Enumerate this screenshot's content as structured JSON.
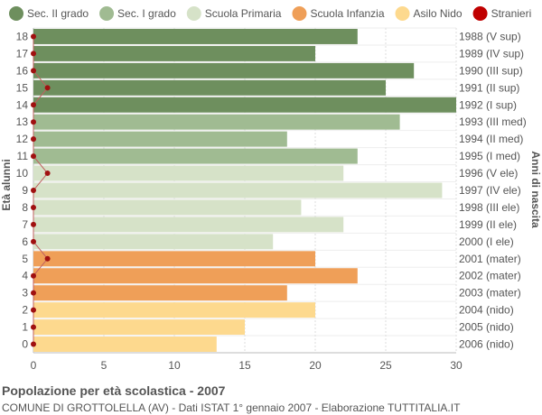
{
  "chart_data": {
    "type": "bar",
    "orientation": "horizontal",
    "title": "Popolazione per età scolastica - 2007",
    "subtitle": "COMUNE DI GROTTOLELLA (AV) - Dati ISTAT 1° gennaio 2007 - Elaborazione TUTTITALIA.IT",
    "ylabel": "Età alunni",
    "ylabel_right": "Anni di nascita",
    "xlim": [
      0,
      30
    ],
    "xticks": [
      "0",
      "5",
      "10",
      "15",
      "20",
      "25",
      "30"
    ],
    "grid": true,
    "legend_position": "top",
    "legend": [
      {
        "name": "Sec. II grado",
        "color": "#6e8f5e"
      },
      {
        "name": "Sec. I grado",
        "color": "#a0bb92"
      },
      {
        "name": "Scuola Primaria",
        "color": "#d6e2c8"
      },
      {
        "name": "Scuola Infanzia",
        "color": "#ef9f58"
      },
      {
        "name": "Asilo Nido",
        "color": "#fdd98e"
      },
      {
        "name": "Stranieri",
        "color": "#c00000"
      }
    ],
    "rows": [
      {
        "age": "18",
        "birth": "1988 (V sup)",
        "value": 23,
        "stranieri": 0,
        "group": 0
      },
      {
        "age": "17",
        "birth": "1989 (IV sup)",
        "value": 20,
        "stranieri": 0,
        "group": 0
      },
      {
        "age": "16",
        "birth": "1990 (III sup)",
        "value": 27,
        "stranieri": 0,
        "group": 0
      },
      {
        "age": "15",
        "birth": "1991 (II sup)",
        "value": 25,
        "stranieri": 1,
        "group": 0
      },
      {
        "age": "14",
        "birth": "1992 (I sup)",
        "value": 30,
        "stranieri": 0,
        "group": 0
      },
      {
        "age": "13",
        "birth": "1993 (III med)",
        "value": 26,
        "stranieri": 0,
        "group": 1
      },
      {
        "age": "12",
        "birth": "1994 (II med)",
        "value": 18,
        "stranieri": 0,
        "group": 1
      },
      {
        "age": "11",
        "birth": "1995 (I med)",
        "value": 23,
        "stranieri": 0,
        "group": 1
      },
      {
        "age": "10",
        "birth": "1996 (V ele)",
        "value": 22,
        "stranieri": 1,
        "group": 2
      },
      {
        "age": "9",
        "birth": "1997 (IV ele)",
        "value": 29,
        "stranieri": 0,
        "group": 2
      },
      {
        "age": "8",
        "birth": "1998 (III ele)",
        "value": 19,
        "stranieri": 0,
        "group": 2
      },
      {
        "age": "7",
        "birth": "1999 (II ele)",
        "value": 22,
        "stranieri": 0,
        "group": 2
      },
      {
        "age": "6",
        "birth": "2000 (I ele)",
        "value": 17,
        "stranieri": 0,
        "group": 2
      },
      {
        "age": "5",
        "birth": "2001 (mater)",
        "value": 20,
        "stranieri": 1,
        "group": 3
      },
      {
        "age": "4",
        "birth": "2002 (mater)",
        "value": 23,
        "stranieri": 0,
        "group": 3
      },
      {
        "age": "3",
        "birth": "2003 (mater)",
        "value": 18,
        "stranieri": 0,
        "group": 3
      },
      {
        "age": "2",
        "birth": "2004 (nido)",
        "value": 20,
        "stranieri": 0,
        "group": 4
      },
      {
        "age": "1",
        "birth": "2005 (nido)",
        "value": 15,
        "stranieri": 0,
        "group": 4
      },
      {
        "age": "0",
        "birth": "2006 (nido)",
        "value": 13,
        "stranieri": 0,
        "group": 4
      }
    ]
  }
}
